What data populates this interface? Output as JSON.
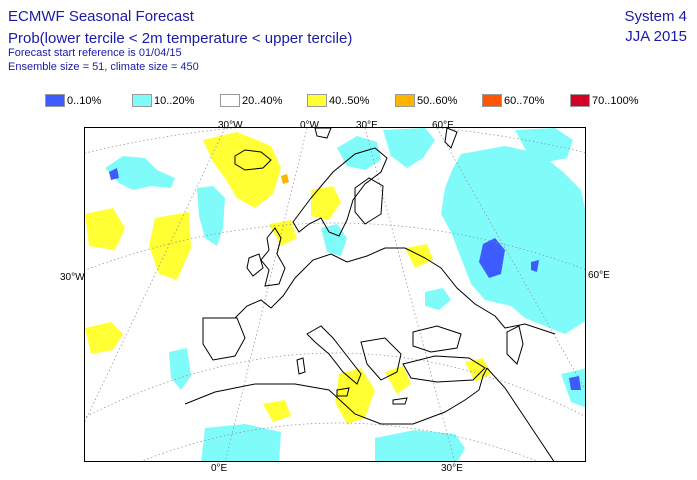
{
  "header": {
    "title": "ECMWF Seasonal Forecast",
    "subtitle": "Prob(lower tercile < 2m temperature < upper tercile)",
    "start_line": "Forecast start reference is 01/04/15",
    "ensemble_line": "Ensemble size = 51, climate size = 450",
    "system": "System 4",
    "season": "JJA 2015"
  },
  "legend": [
    {
      "label": "0..10%",
      "color": "#3d5cff"
    },
    {
      "label": "10..20%",
      "color": "#7ffcfa"
    },
    {
      "label": "20..40%",
      "color": "#ffffff"
    },
    {
      "label": "40..50%",
      "color": "#ffff33"
    },
    {
      "label": "50..60%",
      "color": "#ffb400"
    },
    {
      "label": "60..70%",
      "color": "#ff5500"
    },
    {
      "label": "70..100%",
      "color": "#d00026"
    }
  ],
  "grid_labels": {
    "top_30w": "30°W",
    "top_0w": "0°W",
    "top_30e": "30°E",
    "top_60e": "60°E",
    "left_30w": "30°W",
    "right_60e": "60°E",
    "bottom_0e": "0°E",
    "bottom_30e": "30°E"
  }
}
